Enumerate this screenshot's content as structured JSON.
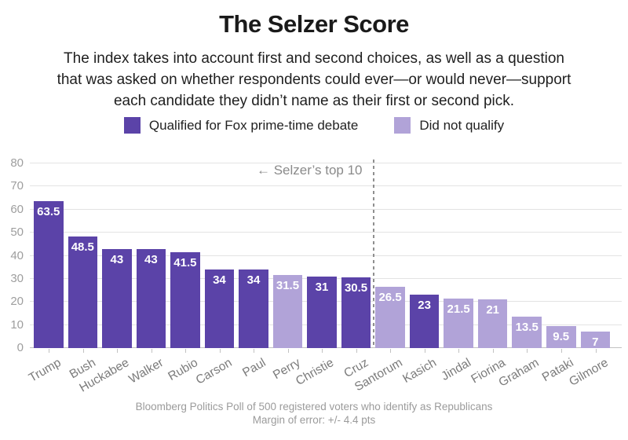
{
  "title": "The Selzer Score",
  "subtitle_lines": [
    "The index takes into account first and second choices, as well as a question",
    "that was asked on whether respondents could ever—or would never—support",
    "each candidate they didn’t name as their first or second pick."
  ],
  "legend": [
    {
      "label": "Qualified for Fox prime-time debate",
      "color": "#5b43a8"
    },
    {
      "label": "Did not qualify",
      "color": "#b1a3d8"
    }
  ],
  "chart_data": {
    "type": "bar",
    "title": "The Selzer Score",
    "categories": [
      "Trump",
      "Bush",
      "Huckabee",
      "Walker",
      "Rubio",
      "Carson",
      "Paul",
      "Perry",
      "Christie",
      "Cruz",
      "Santorum",
      "Kasich",
      "Jindal",
      "Fiorina",
      "Graham",
      "Pataki",
      "Gilmore"
    ],
    "values": [
      63.5,
      48.5,
      43,
      43,
      41.5,
      34,
      34,
      31.5,
      31,
      30.5,
      26.5,
      23,
      21.5,
      21,
      13.5,
      9.5,
      7
    ],
    "qualified": [
      true,
      true,
      true,
      true,
      true,
      true,
      true,
      false,
      true,
      true,
      false,
      true,
      false,
      false,
      false,
      false,
      false
    ],
    "bar_colors": {
      "qualified": "#5b43a8",
      "not_qualified": "#b1a3d8"
    },
    "xlabel": "",
    "ylabel": "",
    "ylim": [
      0,
      80
    ],
    "ytick_step": 10,
    "grid": true,
    "legend_position": "top",
    "annotation": "← Selzer’s top 10",
    "divider_after_index": 9
  },
  "footer_lines": [
    "Bloomberg Politics Poll of 500 registered voters who identify as Republicans",
    "Margin of error: +/- 4.4 pts"
  ]
}
